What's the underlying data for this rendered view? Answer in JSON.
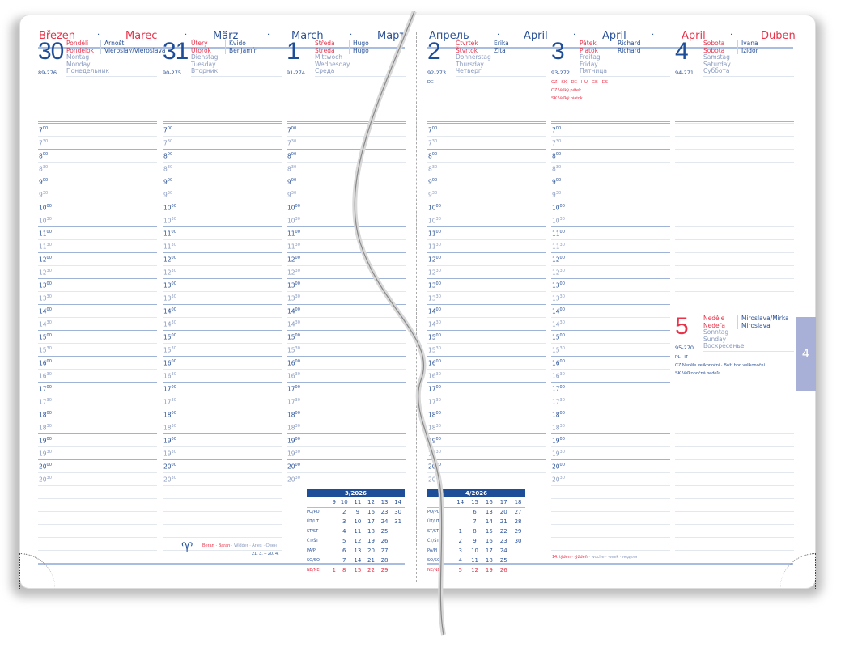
{
  "header": {
    "left_months": [
      {
        "text": "Březen",
        "color": "#e8334a"
      },
      {
        "text": "Marec",
        "color": "#e8334a"
      },
      {
        "text": "März",
        "color": "#2a5298"
      },
      {
        "text": "March",
        "color": "#2a5298"
      },
      {
        "text": "Март",
        "color": "#2a5298"
      }
    ],
    "right_months": [
      {
        "text": "Апрель",
        "color": "#2a5298"
      },
      {
        "text": "April",
        "color": "#2a5298"
      },
      {
        "text": "April",
        "color": "#2a5298"
      },
      {
        "text": "April",
        "color": "#e8334a"
      },
      {
        "text": "Duben",
        "color": "#e8334a"
      }
    ],
    "separator": "·"
  },
  "days": [
    {
      "num": "30",
      "num_color": "#1f4e99",
      "red": [
        "Pondělí",
        "Pondelok"
      ],
      "gray": [
        "Montag",
        "Monday",
        "Понедельник"
      ],
      "nameday": [
        "Arnošt",
        "Vieroslav/Vieroslava"
      ],
      "doy": "89-276",
      "extras": []
    },
    {
      "num": "31",
      "num_color": "#1f4e99",
      "red": [
        "Úterý",
        "Utorok"
      ],
      "gray": [
        "Dienstag",
        "Tuesday",
        "Вторник"
      ],
      "nameday": [
        "Kvido",
        "Benjamín"
      ],
      "doy": "90-275",
      "extras": []
    },
    {
      "num": "1",
      "num_color": "#1f4e99",
      "red": [
        "Středa",
        "Streda"
      ],
      "gray": [
        "Mittwoch",
        "Wednesday",
        "Среда"
      ],
      "nameday": [
        "Hugo",
        "Hugo"
      ],
      "doy": "91-274",
      "extras": []
    },
    {
      "num": "2",
      "num_color": "#1f4e99",
      "red": [
        "Čtvrtek",
        "Štvrtok"
      ],
      "gray": [
        "Donnerstag",
        "Thursday",
        "Четверг"
      ],
      "nameday": [
        "Erika",
        "Zita"
      ],
      "doy": "92-273",
      "extras": [
        {
          "text": "DE",
          "color": "#2a5298"
        }
      ]
    },
    {
      "num": "3",
      "num_color": "#1f4e99",
      "red": [
        "Pátek",
        "Piatok"
      ],
      "gray": [
        "Freitag",
        "Friday",
        "Пятница"
      ],
      "nameday": [
        "Richard",
        "Richard"
      ],
      "doy": "93-272",
      "extras": [
        {
          "text": "CZ · SK · DE · HU · GB · ES",
          "color": "#e8334a"
        },
        {
          "text": "CZ   Velký pátek",
          "color": "#e8334a"
        },
        {
          "text": "SK   Veľký piatok",
          "color": "#e8334a"
        }
      ]
    },
    {
      "num": "4",
      "num_color": "#1f4e99",
      "red": [
        "Sobota",
        "Sobota"
      ],
      "gray": [
        "Samstag",
        "Saturday",
        "Суббота"
      ],
      "nameday": [
        "Ivana",
        "Izidor"
      ],
      "doy": "94-271",
      "extras": []
    },
    {
      "num": "5",
      "num_color": "#e8334a",
      "red": [
        "Neděle",
        "Nedeľa"
      ],
      "gray": [
        "Sonntag",
        "Sunday",
        "Воскресенье"
      ],
      "nameday": [
        "Miroslava/Mirka",
        "Miroslava"
      ],
      "doy": "95-270",
      "extras": [
        {
          "text": "PL · IT",
          "color": "#2a5298"
        },
        {
          "text": "CZ   Neděle velikonoční · Boží hod velikonoční",
          "color": "#2a5298"
        },
        {
          "text": "SK   Veľkonočná nedeľa",
          "color": "#2a5298"
        }
      ]
    }
  ],
  "times": [
    [
      "7",
      "00"
    ],
    [
      "7",
      "30"
    ],
    [
      "8",
      "00"
    ],
    [
      "8",
      "30"
    ],
    [
      "9",
      "00"
    ],
    [
      "9",
      "30"
    ],
    [
      "10",
      "00"
    ],
    [
      "10",
      "30"
    ],
    [
      "11",
      "00"
    ],
    [
      "11",
      "30"
    ],
    [
      "12",
      "00"
    ],
    [
      "12",
      "30"
    ],
    [
      "13",
      "00"
    ],
    [
      "13",
      "30"
    ],
    [
      "14",
      "00"
    ],
    [
      "14",
      "30"
    ],
    [
      "15",
      "00"
    ],
    [
      "15",
      "30"
    ],
    [
      "16",
      "00"
    ],
    [
      "16",
      "30"
    ],
    [
      "17",
      "00"
    ],
    [
      "17",
      "30"
    ],
    [
      "18",
      "00"
    ],
    [
      "18",
      "30"
    ],
    [
      "19",
      "00"
    ],
    [
      "19",
      "30"
    ],
    [
      "20",
      "00"
    ],
    [
      "20",
      "30"
    ]
  ],
  "mini_calendars": [
    {
      "title": "3/2026",
      "weeks": [
        "9",
        "10",
        "11",
        "12",
        "13",
        "14"
      ],
      "rows": [
        {
          "label": "PO/PO",
          "vals": [
            "",
            "2",
            "9",
            "16",
            "23",
            "30"
          ]
        },
        {
          "label": "ÚT/UT",
          "vals": [
            "",
            "3",
            "10",
            "17",
            "24",
            "31"
          ]
        },
        {
          "label": "ST/ST",
          "vals": [
            "",
            "4",
            "11",
            "18",
            "25",
            ""
          ]
        },
        {
          "label": "ČT/ŠT",
          "vals": [
            "",
            "5",
            "12",
            "19",
            "26",
            ""
          ]
        },
        {
          "label": "PÁ/PI",
          "vals": [
            "",
            "6",
            "13",
            "20",
            "27",
            ""
          ]
        },
        {
          "label": "SO/SO",
          "vals": [
            "",
            "7",
            "14",
            "21",
            "28",
            ""
          ]
        },
        {
          "label": "NE/NE",
          "vals": [
            "1",
            "8",
            "15",
            "22",
            "29",
            ""
          ],
          "sunday": true
        }
      ]
    },
    {
      "title": "4/2026",
      "weeks": [
        "14",
        "15",
        "16",
        "17",
        "18"
      ],
      "rows": [
        {
          "label": "PO/PO",
          "vals": [
            "",
            "6",
            "13",
            "20",
            "27"
          ]
        },
        {
          "label": "ÚT/UT",
          "vals": [
            "",
            "7",
            "14",
            "21",
            "28"
          ]
        },
        {
          "label": "ST/ST",
          "vals": [
            "1",
            "8",
            "15",
            "22",
            "29"
          ]
        },
        {
          "label": "ČT/ŠT",
          "vals": [
            "2",
            "9",
            "16",
            "23",
            "30"
          ]
        },
        {
          "label": "PÁ/PI",
          "vals": [
            "3",
            "10",
            "17",
            "24",
            ""
          ]
        },
        {
          "label": "SO/SO",
          "vals": [
            "4",
            "11",
            "18",
            "25",
            ""
          ]
        },
        {
          "label": "NE/NE",
          "vals": [
            "5",
            "12",
            "19",
            "26",
            ""
          ],
          "sunday": true
        }
      ]
    }
  ],
  "zodiac": {
    "red": "Beran · Baran",
    "gray": " · Widder · Aries · Овен",
    "dates": "21. 3. – 20. 4."
  },
  "week_footer": {
    "red": "14. týden · týždeň",
    "gray": " · woche · week · неделя"
  },
  "tab_label": "4",
  "colors": {
    "blue": "#2a5298",
    "red": "#e8334a",
    "tab": "#a8b0d8"
  }
}
